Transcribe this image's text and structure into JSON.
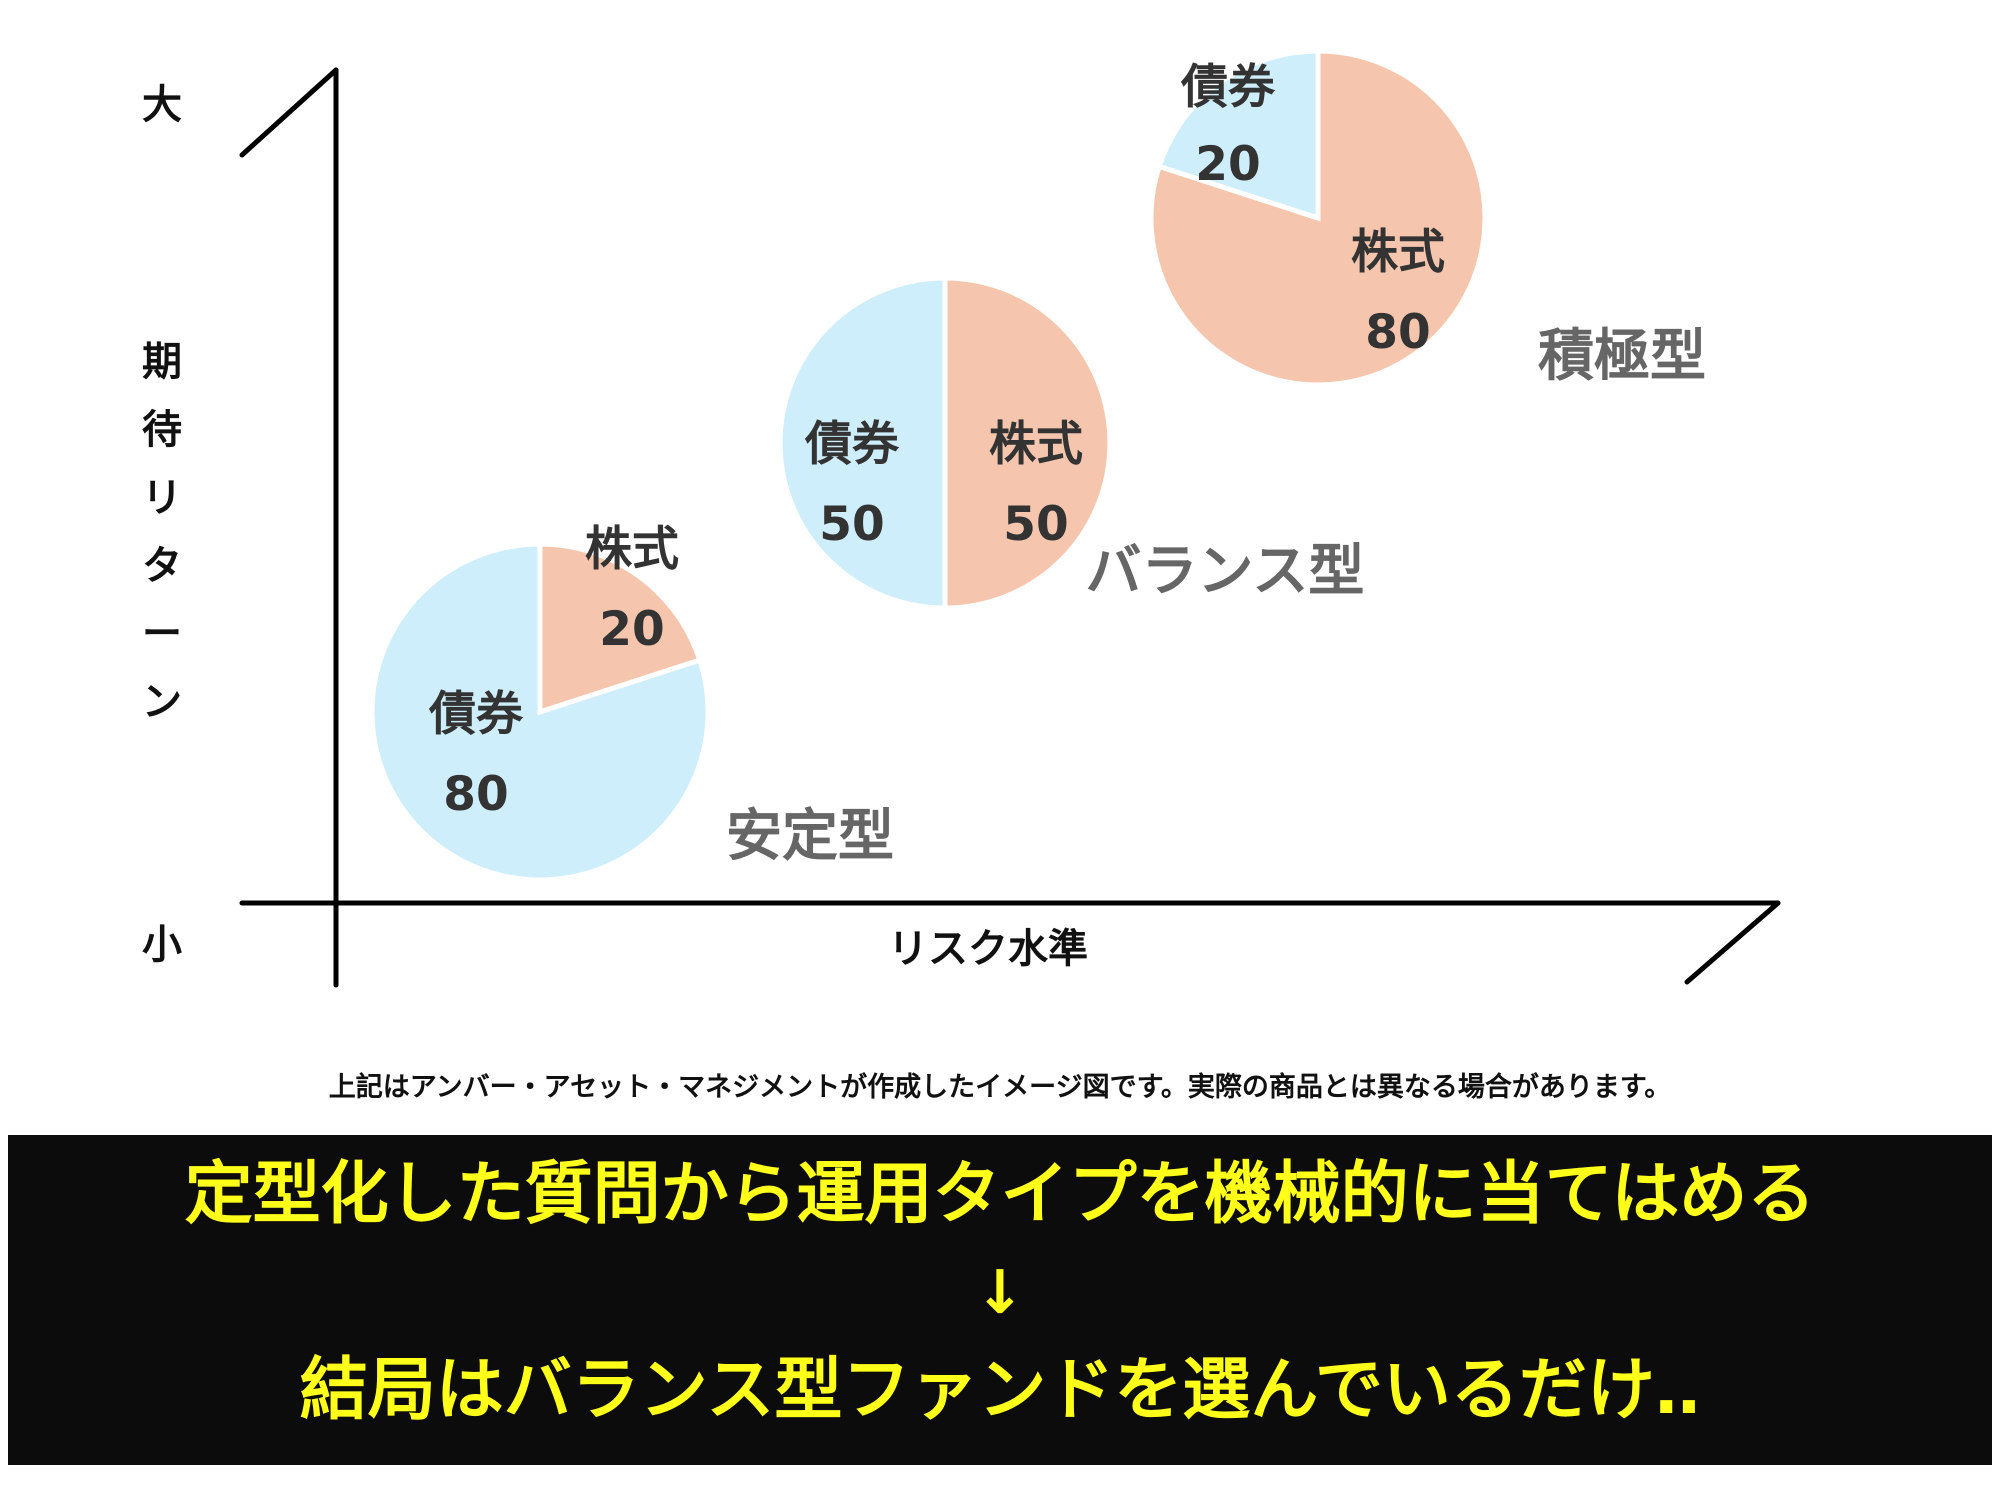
{
  "chart_data": {
    "type": "pie",
    "axes": {
      "y_label_chars": [
        "期",
        "待",
        "リ",
        "タ",
        "ー",
        "ン"
      ],
      "y_top": "大",
      "y_bottom": "小",
      "x_label": "リスク水準"
    },
    "pies": [
      {
        "name": "安定型",
        "slices": [
          {
            "label": "株式",
            "value": 20,
            "color": "#f5c6ad"
          },
          {
            "label": "債券",
            "value": 80,
            "color": "#cdeefa"
          }
        ]
      },
      {
        "name": "バランス型",
        "slices": [
          {
            "label": "株式",
            "value": 50,
            "color": "#f5c6ad"
          },
          {
            "label": "債券",
            "value": 50,
            "color": "#cdeefa"
          }
        ]
      },
      {
        "name": "積極型",
        "slices": [
          {
            "label": "株式",
            "value": 80,
            "color": "#f5c6ad"
          },
          {
            "label": "債券",
            "value": 20,
            "color": "#cdeefa"
          }
        ]
      }
    ]
  },
  "note": "上記はアンバー・アセット・マネジメントが作成したイメージ図です。実際の商品とは異なる場合があります。",
  "banner": {
    "line1": "定型化した質問から運用タイプを機械的に当てはめる",
    "arrow": "↓",
    "line2": "結局はバランス型ファンドを選んでいるだけ‥"
  }
}
